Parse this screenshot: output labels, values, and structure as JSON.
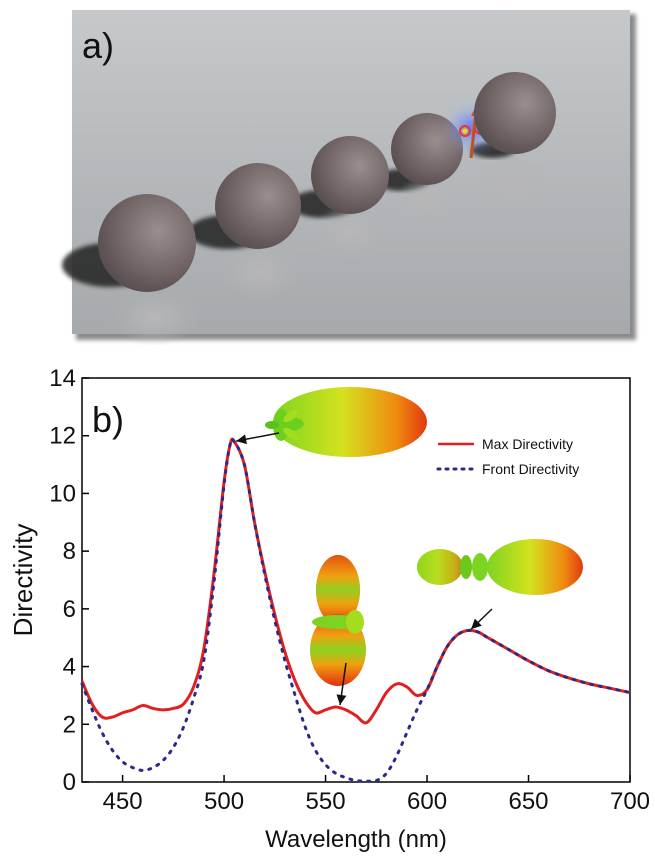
{
  "panel_a": {
    "label": "a)"
  },
  "panel_b": {
    "label": "b)"
  },
  "chart_data": {
    "type": "line",
    "title": "",
    "xlabel": "Wavelength (nm)",
    "ylabel": "Directivity",
    "xlim": [
      430,
      700
    ],
    "ylim": [
      0,
      14
    ],
    "xticks": [
      450,
      500,
      550,
      600,
      650,
      700
    ],
    "yticks": [
      0,
      2,
      4,
      6,
      8,
      10,
      12,
      14
    ],
    "grid": false,
    "legend_position": "top-right",
    "series": [
      {
        "name": "Max Directivity",
        "color": "#e02020",
        "style": "solid",
        "x": [
          430,
          435,
          440,
          445,
          450,
          455,
          460,
          465,
          470,
          475,
          480,
          485,
          490,
          495,
          500,
          503,
          505,
          510,
          515,
          520,
          525,
          530,
          535,
          540,
          545,
          550,
          555,
          560,
          565,
          570,
          575,
          580,
          585,
          590,
          595,
          600,
          605,
          610,
          615,
          620,
          625,
          630,
          640,
          650,
          660,
          670,
          680,
          690,
          700
        ],
        "y": [
          3.5,
          2.7,
          2.25,
          2.25,
          2.4,
          2.5,
          2.65,
          2.55,
          2.5,
          2.55,
          2.7,
          3.3,
          4.6,
          7.2,
          10.4,
          11.7,
          11.8,
          11.0,
          9.0,
          7.3,
          5.8,
          4.5,
          3.5,
          2.8,
          2.4,
          2.5,
          2.6,
          2.5,
          2.3,
          2.05,
          2.5,
          3.1,
          3.4,
          3.3,
          3.0,
          3.2,
          4.0,
          4.7,
          5.1,
          5.25,
          5.2,
          5.0,
          4.6,
          4.2,
          3.85,
          3.6,
          3.4,
          3.25,
          3.1
        ]
      },
      {
        "name": "Front Directivity",
        "color": "#2a2a8a",
        "style": "dotted",
        "x": [
          430,
          435,
          440,
          445,
          450,
          455,
          460,
          465,
          470,
          475,
          480,
          485,
          490,
          495,
          500,
          503,
          505,
          510,
          515,
          520,
          525,
          530,
          535,
          540,
          545,
          550,
          555,
          560,
          565,
          570,
          575,
          580,
          585,
          590,
          595,
          600,
          605,
          610,
          615,
          620,
          625,
          630,
          640,
          650,
          660,
          670,
          680,
          690,
          700
        ],
        "y": [
          3.4,
          2.5,
          1.7,
          1.1,
          0.7,
          0.5,
          0.4,
          0.5,
          0.75,
          1.2,
          1.9,
          2.9,
          4.2,
          6.9,
          10.3,
          11.7,
          11.8,
          11.0,
          9.0,
          7.2,
          5.6,
          4.2,
          3.0,
          1.9,
          1.1,
          0.6,
          0.3,
          0.15,
          0.05,
          0.03,
          0.05,
          0.3,
          0.9,
          1.7,
          2.5,
          3.2,
          4.0,
          4.7,
          5.1,
          5.25,
          5.2,
          5.0,
          4.6,
          4.2,
          3.85,
          3.6,
          3.4,
          3.25,
          3.1
        ]
      }
    ],
    "annotations": [
      {
        "kind": "radiation-pattern",
        "shape": "forward-lobe",
        "x": 505,
        "y": 11.8
      },
      {
        "kind": "radiation-pattern",
        "shape": "vertical-dipole",
        "x": 557,
        "y": 2.6
      },
      {
        "kind": "radiation-pattern",
        "shape": "forward-with-back-lobe",
        "x": 621,
        "y": 5.25
      }
    ]
  }
}
